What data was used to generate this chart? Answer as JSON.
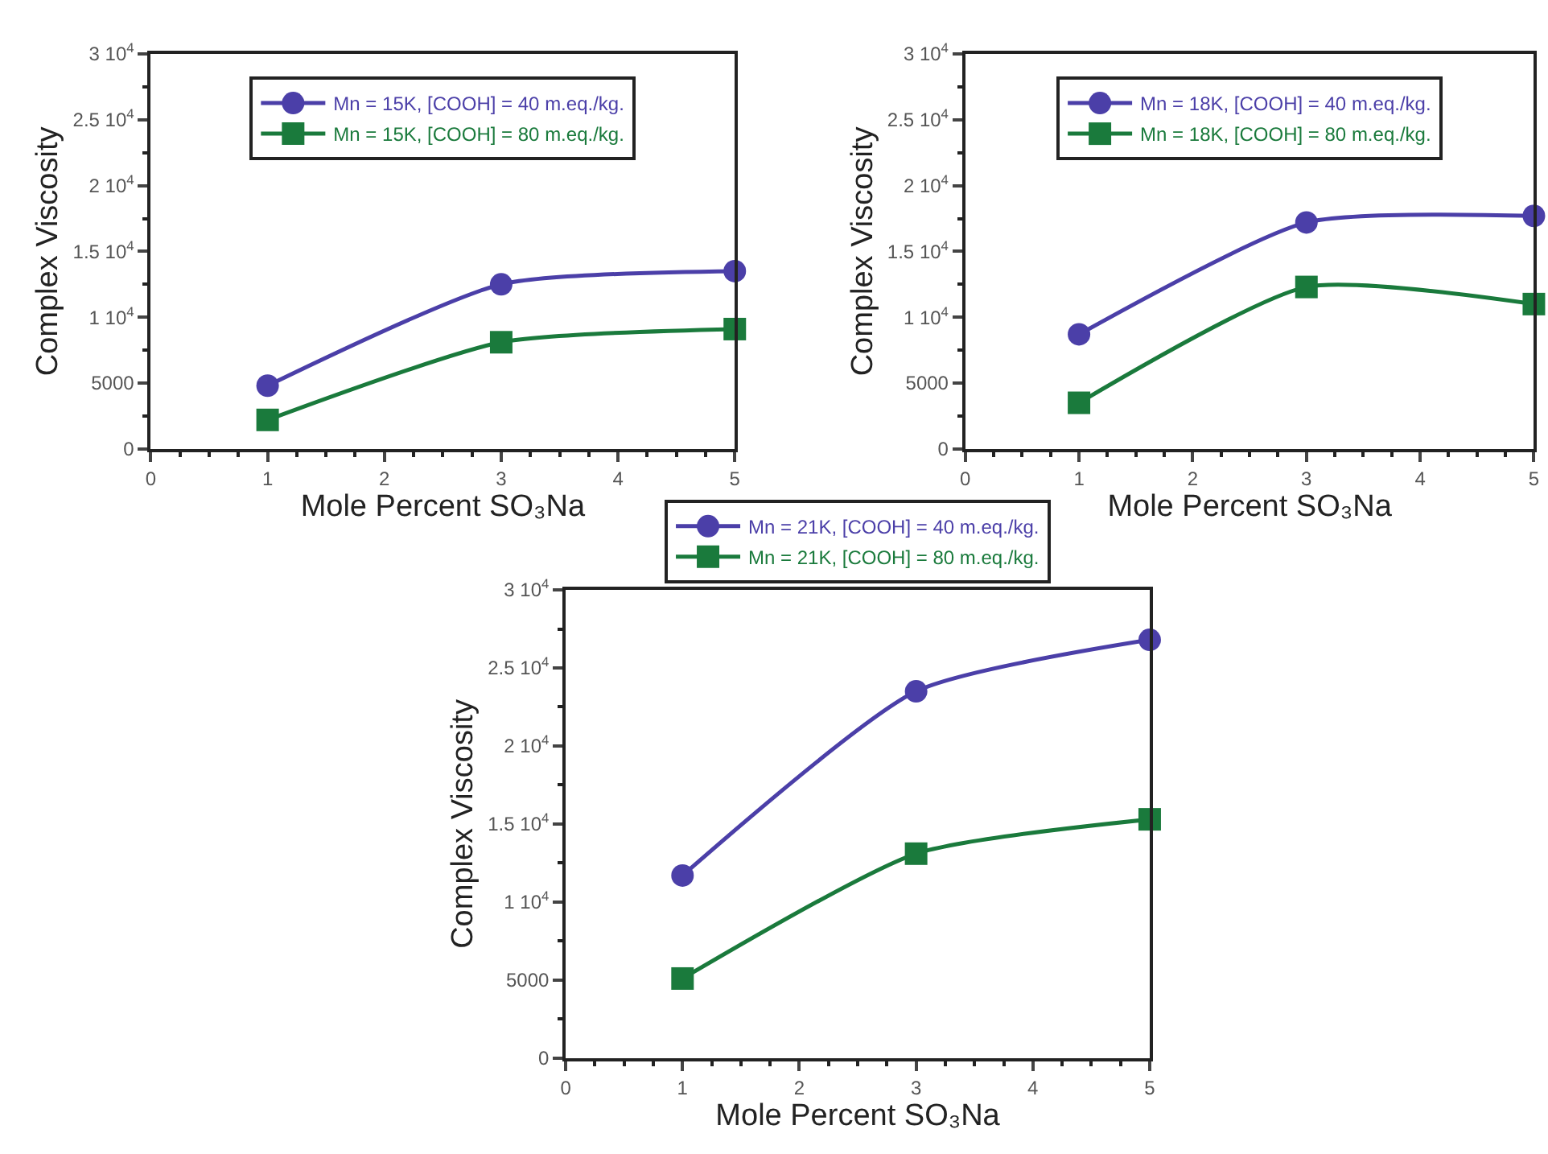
{
  "chart_data": [
    {
      "type": "line",
      "xlabel": "Mole Percent SO₃Na",
      "ylabel": "Complex Viscosity",
      "x": [
        1,
        3,
        5
      ],
      "xlim": [
        0,
        5
      ],
      "xticks": [
        0,
        1,
        2,
        3,
        4,
        5
      ],
      "ylim": [
        0,
        30000
      ],
      "yticks": [
        0,
        5000,
        {
          "value": 10000,
          "label": "1 10$^{4}$"
        },
        {
          "value": 15000,
          "label": "1.5 10$^{4}$"
        },
        {
          "value": 20000,
          "label": "2 10$^{4}$"
        },
        {
          "value": 25000,
          "label": "2.5 10$^{4}$"
        },
        {
          "value": 30000,
          "label": "3 10$^{4}$"
        }
      ],
      "legend": "top",
      "line_style": "solid",
      "series": [
        {
          "name": "Mn = 15K, [COOH] = 40 m.eq./kg.",
          "color": "#4b3fa8",
          "marker": "circle",
          "values": [
            4800,
            12500,
            13500
          ]
        },
        {
          "name": "Mn = 15K, [COOH] = 80 m.eq./kg.",
          "color": "#1a7a3c",
          "marker": "square",
          "values": [
            2200,
            8100,
            9100
          ]
        }
      ]
    },
    {
      "type": "line",
      "xlabel": "Mole Percent SO₃Na",
      "ylabel": "Complex Viscosity",
      "x": [
        1,
        3,
        5
      ],
      "xlim": [
        0,
        5
      ],
      "xticks": [
        0,
        1,
        2,
        3,
        4,
        5
      ],
      "ylim": [
        0,
        30000
      ],
      "yticks": [
        0,
        5000,
        {
          "value": 10000,
          "label": "1 10$^{4}$"
        },
        {
          "value": 15000,
          "label": "1.5 10$^{4}$"
        },
        {
          "value": 20000,
          "label": "2 10$^{4}$"
        },
        {
          "value": 25000,
          "label": "2.5 10$^{4}$"
        },
        {
          "value": 30000,
          "label": "3 10$^{4}$"
        }
      ],
      "legend": "top",
      "line_style": "solid",
      "series": [
        {
          "name": "Mn = 18K, [COOH] = 40 m.eq./kg.",
          "color": "#4b3fa8",
          "marker": "circle",
          "values": [
            8700,
            17200,
            17700
          ]
        },
        {
          "name": "Mn = 18K, [COOH] = 80 m.eq./kg.",
          "color": "#1a7a3c",
          "marker": "square",
          "values": [
            3500,
            12300,
            11000
          ]
        }
      ]
    },
    {
      "type": "line",
      "xlabel": "Mole Percent SO₃Na",
      "ylabel": "Complex Viscosity",
      "x": [
        1,
        3,
        5
      ],
      "xlim": [
        0,
        5
      ],
      "xticks": [
        0,
        1,
        2,
        3,
        4,
        5
      ],
      "ylim": [
        0,
        30000
      ],
      "yticks": [
        0,
        5000,
        {
          "value": 10000,
          "label": "1 10$^{4}$"
        },
        {
          "value": 15000,
          "label": "1.5 10$^{4}$"
        },
        {
          "value": 20000,
          "label": "2 10$^{4}$"
        },
        {
          "value": 25000,
          "label": "2.5 10$^{4}$"
        },
        {
          "value": 30000,
          "label": "3 10$^{4}$"
        }
      ],
      "legend": "top",
      "line_style": "solid",
      "series": [
        {
          "name": "Mn = 21K, [COOH] = 40 m.eq./kg.",
          "color": "#4b3fa8",
          "marker": "circle",
          "values": [
            11700,
            23500,
            26800
          ]
        },
        {
          "name": "Mn = 21K, [COOH] = 80 m.eq./kg.",
          "color": "#1a7a3c",
          "marker": "square",
          "values": [
            5100,
            13100,
            15300
          ]
        }
      ]
    }
  ]
}
